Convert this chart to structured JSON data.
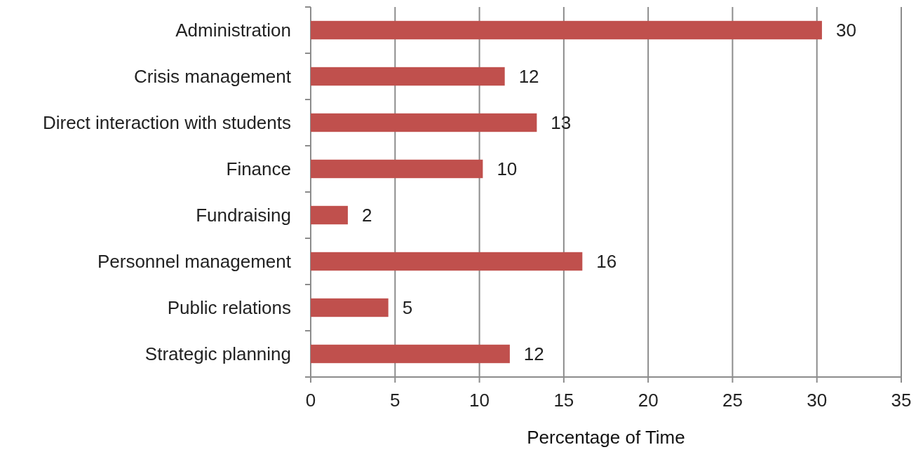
{
  "chart_data": {
    "type": "bar",
    "orientation": "horizontal",
    "categories": [
      "Administration",
      "Crisis management",
      "Direct interaction with students",
      "Finance",
      "Fundraising",
      "Personnel management",
      "Public relations",
      "Strategic planning"
    ],
    "values": [
      30.3,
      11.5,
      13.4,
      10.2,
      2.2,
      16.1,
      4.6,
      11.8
    ],
    "value_labels": [
      "30",
      "12",
      "13",
      "10",
      "2",
      "16",
      "5",
      "12"
    ],
    "color": "#c0504d",
    "xlabel": "Percentage of Time",
    "xlim": [
      0,
      35
    ],
    "xticks": [
      0,
      5,
      10,
      15,
      20,
      25,
      30,
      35
    ],
    "grid": "x"
  }
}
